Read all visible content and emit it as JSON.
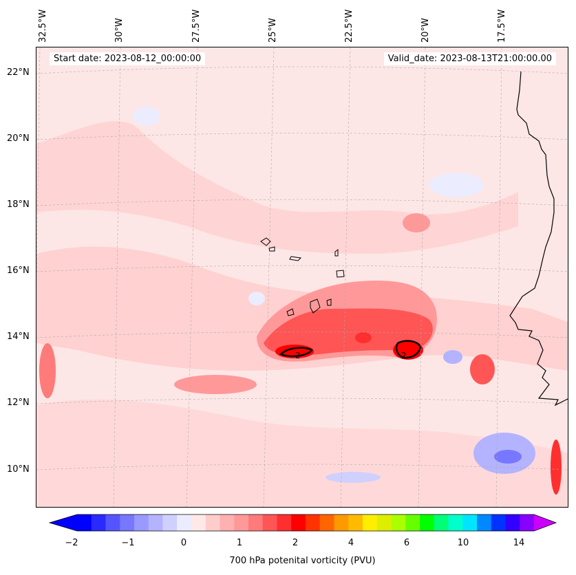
{
  "header": {
    "start_date": "Start date: 2023-08-12_00:00:00",
    "valid_date": "Valid_date: 2023-08-13T21:00:00.00"
  },
  "axes": {
    "lon_labels": [
      "32.5°W",
      "30°W",
      "27.5°W",
      "25°W",
      "22.5°W",
      "20°W",
      "17.5°W"
    ],
    "lat_labels": [
      "22°N",
      "20°N",
      "18°N",
      "16°N",
      "14°N",
      "12°N",
      "10°N"
    ],
    "grid": true
  },
  "contours": {
    "label_left": "2",
    "label_right": "2"
  },
  "colorbar": {
    "label": "700 hPa potenital vorticity (PVU)",
    "ticks": [
      "−2",
      "−1",
      "0",
      "1",
      "2",
      "4",
      "6",
      "10",
      "14"
    ],
    "colors": [
      "#0000ff",
      "#2a2aff",
      "#5555ff",
      "#7777ff",
      "#9999ff",
      "#b3b3ff",
      "#d0d0ff",
      "#ececff",
      "#ffe8e8",
      "#ffcccc",
      "#ffb0b0",
      "#ff9999",
      "#ff7a7a",
      "#ff5555",
      "#ff2f2f",
      "#ff0000",
      "#ff3300",
      "#ff6600",
      "#ff9900",
      "#ffbb00",
      "#ffee00",
      "#ddee00",
      "#aaff00",
      "#66ff00",
      "#00ff00",
      "#00ff77",
      "#00ffcc",
      "#00e5ff",
      "#0088ff",
      "#0033ff",
      "#3300ff",
      "#8800ff"
    ],
    "extend_low": "#0000ff",
    "extend_high": "#cc00ff"
  }
}
